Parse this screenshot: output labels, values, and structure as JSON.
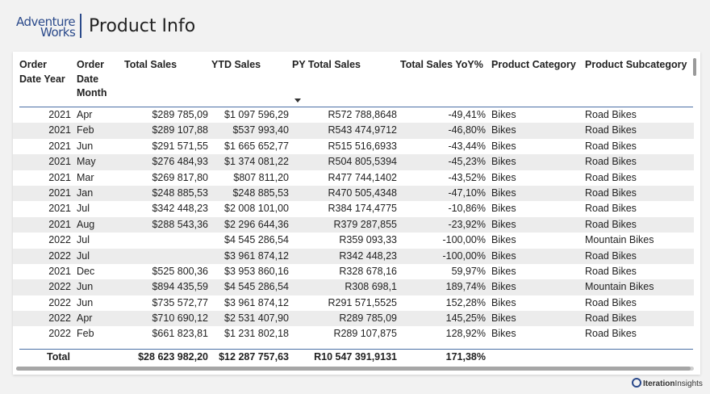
{
  "header": {
    "logo_line1": "Adventure",
    "logo_line2": "Works",
    "title": "Product Info"
  },
  "table": {
    "columns": [
      {
        "key": "year",
        "label": "Order\nDate Year"
      },
      {
        "key": "month",
        "label": "Order\nDate\nMonth"
      },
      {
        "key": "total_sales",
        "label": "Total Sales"
      },
      {
        "key": "ytd_sales",
        "label": "YTD Sales"
      },
      {
        "key": "py_total_sales",
        "label": "PY Total Sales"
      },
      {
        "key": "yoy",
        "label": "Total Sales YoY%"
      },
      {
        "key": "category",
        "label": "Product Category"
      },
      {
        "key": "subcategory",
        "label": "Product Subcategory"
      }
    ],
    "sort_column": "PY Total Sales",
    "sort_direction": "descending",
    "rows": [
      {
        "year": "2021",
        "month": "Apr",
        "total_sales": "$289 785,09",
        "ytd_sales": "$1 097 596,29",
        "py_total_sales": "R572 788,8648",
        "yoy": "-49,41%",
        "category": "Bikes",
        "subcategory": "Road Bikes"
      },
      {
        "year": "2021",
        "month": "Feb",
        "total_sales": "$289 107,88",
        "ytd_sales": "$537 993,40",
        "py_total_sales": "R543 474,9712",
        "yoy": "-46,80%",
        "category": "Bikes",
        "subcategory": "Road Bikes"
      },
      {
        "year": "2021",
        "month": "Jun",
        "total_sales": "$291 571,55",
        "ytd_sales": "$1 665 652,77",
        "py_total_sales": "R515 516,6933",
        "yoy": "-43,44%",
        "category": "Bikes",
        "subcategory": "Road Bikes"
      },
      {
        "year": "2021",
        "month": "May",
        "total_sales": "$276 484,93",
        "ytd_sales": "$1 374 081,22",
        "py_total_sales": "R504 805,5394",
        "yoy": "-45,23%",
        "category": "Bikes",
        "subcategory": "Road Bikes"
      },
      {
        "year": "2021",
        "month": "Mar",
        "total_sales": "$269 817,80",
        "ytd_sales": "$807 811,20",
        "py_total_sales": "R477 744,1402",
        "yoy": "-43,52%",
        "category": "Bikes",
        "subcategory": "Road Bikes"
      },
      {
        "year": "2021",
        "month": "Jan",
        "total_sales": "$248 885,53",
        "ytd_sales": "$248 885,53",
        "py_total_sales": "R470 505,4348",
        "yoy": "-47,10%",
        "category": "Bikes",
        "subcategory": "Road Bikes"
      },
      {
        "year": "2021",
        "month": "Jul",
        "total_sales": "$342 448,23",
        "ytd_sales": "$2 008 101,00",
        "py_total_sales": "R384 174,4775",
        "yoy": "-10,86%",
        "category": "Bikes",
        "subcategory": "Road Bikes"
      },
      {
        "year": "2021",
        "month": "Aug",
        "total_sales": "$288 543,36",
        "ytd_sales": "$2 296 644,36",
        "py_total_sales": "R379 287,855",
        "yoy": "-23,92%",
        "category": "Bikes",
        "subcategory": "Road Bikes"
      },
      {
        "year": "2022",
        "month": "Jul",
        "total_sales": "",
        "ytd_sales": "$4 545 286,54",
        "py_total_sales": "R359 093,33",
        "yoy": "-100,00%",
        "category": "Bikes",
        "subcategory": "Mountain Bikes"
      },
      {
        "year": "2022",
        "month": "Jul",
        "total_sales": "",
        "ytd_sales": "$3 961 874,12",
        "py_total_sales": "R342 448,23",
        "yoy": "-100,00%",
        "category": "Bikes",
        "subcategory": "Road Bikes"
      },
      {
        "year": "2021",
        "month": "Dec",
        "total_sales": "$525 800,36",
        "ytd_sales": "$3 953 860,16",
        "py_total_sales": "R328 678,16",
        "yoy": "59,97%",
        "category": "Bikes",
        "subcategory": "Road Bikes"
      },
      {
        "year": "2022",
        "month": "Jun",
        "total_sales": "$894 435,59",
        "ytd_sales": "$4 545 286,54",
        "py_total_sales": "R308 698,1",
        "yoy": "189,74%",
        "category": "Bikes",
        "subcategory": "Mountain Bikes"
      },
      {
        "year": "2022",
        "month": "Jun",
        "total_sales": "$735 572,77",
        "ytd_sales": "$3 961 874,12",
        "py_total_sales": "R291 571,5525",
        "yoy": "152,28%",
        "category": "Bikes",
        "subcategory": "Road Bikes"
      },
      {
        "year": "2022",
        "month": "Apr",
        "total_sales": "$710 690,12",
        "ytd_sales": "$2 531 407,90",
        "py_total_sales": "R289 785,09",
        "yoy": "145,25%",
        "category": "Bikes",
        "subcategory": "Road Bikes"
      },
      {
        "year": "2022",
        "month": "Feb",
        "total_sales": "$661 823,81",
        "ytd_sales": "$1 231 802,18",
        "py_total_sales": "R289 107,875",
        "yoy": "128,92%",
        "category": "Bikes",
        "subcategory": "Road Bikes"
      }
    ],
    "total": {
      "label": "Total",
      "total_sales": "$28 623 982,20",
      "ytd_sales": "$12 287 757,63",
      "py_total_sales": "R10 547 391,9131",
      "yoy": "171,38%"
    }
  },
  "footer": {
    "brand_part1": "Iteration",
    "brand_part2": "Insights"
  }
}
